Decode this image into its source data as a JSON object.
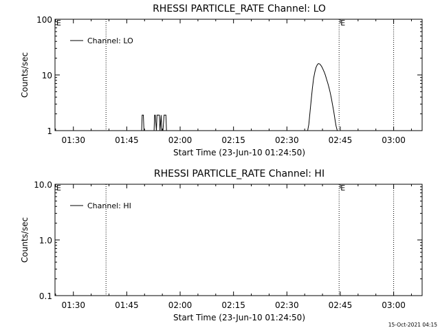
{
  "chart_data": [
    {
      "type": "line",
      "title": "RHESSI PARTICLE_RATE Channel: LO",
      "xlabel": "Start Time (23-Jun-10 01:24:50)",
      "ylabel": "Counts/sec",
      "xlim": [
        "01:24:50",
        "03:08:00"
      ],
      "yscale": "log",
      "ylim": [
        1,
        100
      ],
      "x_ticks": [
        "01:30",
        "01:45",
        "02:00",
        "02:15",
        "02:30",
        "02:45",
        "03:00"
      ],
      "y_ticks": [
        "1",
        "10",
        "100"
      ],
      "legend": "Channel: LO",
      "legend_position": "top-left",
      "markers": [
        {
          "label": "E",
          "x": "01:24:50",
          "line": false
        },
        {
          "label": "",
          "x": "01:39:10",
          "line": true
        },
        {
          "label": "E",
          "x": "02:44:40",
          "line": true
        },
        {
          "label": "",
          "x": "03:00:00",
          "line": true
        }
      ],
      "series": [
        {
          "x": [
            "01:49:10",
            "01:49:20",
            "01:49:40",
            "01:49:50",
            "01:52:40",
            "01:52:50",
            "01:53:00",
            "01:53:20",
            "01:53:30",
            "01:54:10",
            "01:54:20",
            "01:54:40",
            "01:54:50",
            "01:55:10",
            "01:55:30",
            "01:55:40",
            "01:56:00",
            "01:56:10",
            "02:35:50",
            "02:36:10",
            "02:36:30",
            "02:36:50",
            "02:37:10",
            "02:37:30",
            "02:37:50",
            "02:38:10",
            "02:38:30",
            "02:38:50",
            "02:39:10",
            "02:39:30",
            "02:39:50",
            "02:40:10",
            "02:40:30",
            "02:40:50",
            "02:41:10",
            "02:41:30",
            "02:41:50",
            "02:42:10",
            "02:42:30",
            "02:42:50",
            "02:43:10",
            "02:43:30",
            "02:43:50",
            "02:44:10"
          ],
          "values": [
            1,
            1.9,
            1.9,
            1,
            1,
            1.9,
            1.9,
            1,
            1.9,
            1.9,
            1,
            1.9,
            1,
            1,
            1.9,
            1.9,
            1.9,
            1,
            1,
            1.3,
            2.2,
            3.6,
            5.8,
            8.6,
            11.2,
            13.6,
            15.1,
            16,
            15.8,
            15,
            13.9,
            12.6,
            11.2,
            9.8,
            8.3,
            7.1,
            5.9,
            4.8,
            3.8,
            2.9,
            2.2,
            1.6,
            1.2,
            1
          ]
        }
      ]
    },
    {
      "type": "line",
      "title": "RHESSI PARTICLE_RATE Channel: HI",
      "xlabel": "Start Time (23-Jun-10 01:24:50)",
      "ylabel": "Counts/sec",
      "xlim": [
        "01:24:50",
        "03:08:00"
      ],
      "yscale": "log",
      "ylim": [
        0.1,
        10
      ],
      "x_ticks": [
        "01:30",
        "01:45",
        "02:00",
        "02:15",
        "02:30",
        "02:45",
        "03:00"
      ],
      "y_ticks": [
        "0.1",
        "1.0",
        "10.0"
      ],
      "legend": "Channel: HI",
      "legend_position": "top-left",
      "markers": [
        {
          "label": "E",
          "x": "01:24:50",
          "line": false
        },
        {
          "label": "",
          "x": "01:39:10",
          "line": true
        },
        {
          "label": "E",
          "x": "02:44:40",
          "line": true
        },
        {
          "label": "",
          "x": "03:00:00",
          "line": true
        }
      ],
      "series": [
        {
          "x": [],
          "values": []
        }
      ]
    }
  ],
  "footer": {
    "timestamp": "15-Oct-2021 04:15"
  }
}
